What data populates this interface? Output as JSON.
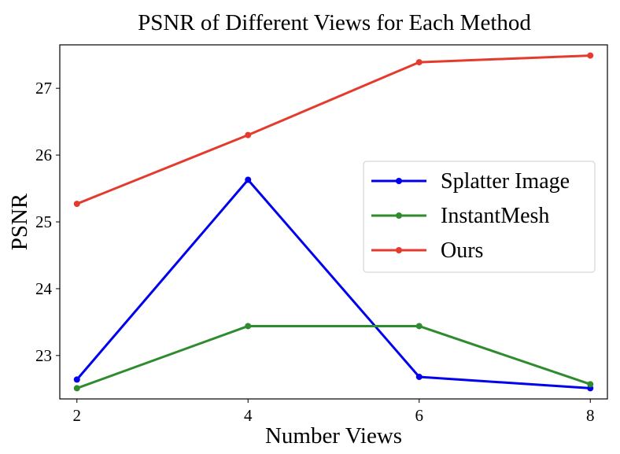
{
  "chart_data": {
    "type": "line",
    "title": "PSNR of Different Views for Each Method",
    "xlabel": "Number Views",
    "ylabel": "PSNR",
    "x": [
      2,
      4,
      6,
      8
    ],
    "xticks": [
      "2",
      "4",
      "6",
      "8"
    ],
    "yticks": [
      "23",
      "24",
      "25",
      "26",
      "27"
    ],
    "xlim": [
      1.8,
      8.2
    ],
    "ylim": [
      22.35,
      27.65
    ],
    "grid": false,
    "legend_position": "center-right",
    "series": [
      {
        "name": "Splatter Image",
        "color": "#0000ee",
        "values": [
          22.64,
          25.63,
          22.68,
          22.51
        ]
      },
      {
        "name": "InstantMesh",
        "color": "#2e8b2e",
        "values": [
          22.51,
          23.44,
          23.44,
          22.57
        ]
      },
      {
        "name": "Ours",
        "color": "#e53a2e",
        "values": [
          25.27,
          26.3,
          27.39,
          27.49
        ]
      }
    ]
  }
}
